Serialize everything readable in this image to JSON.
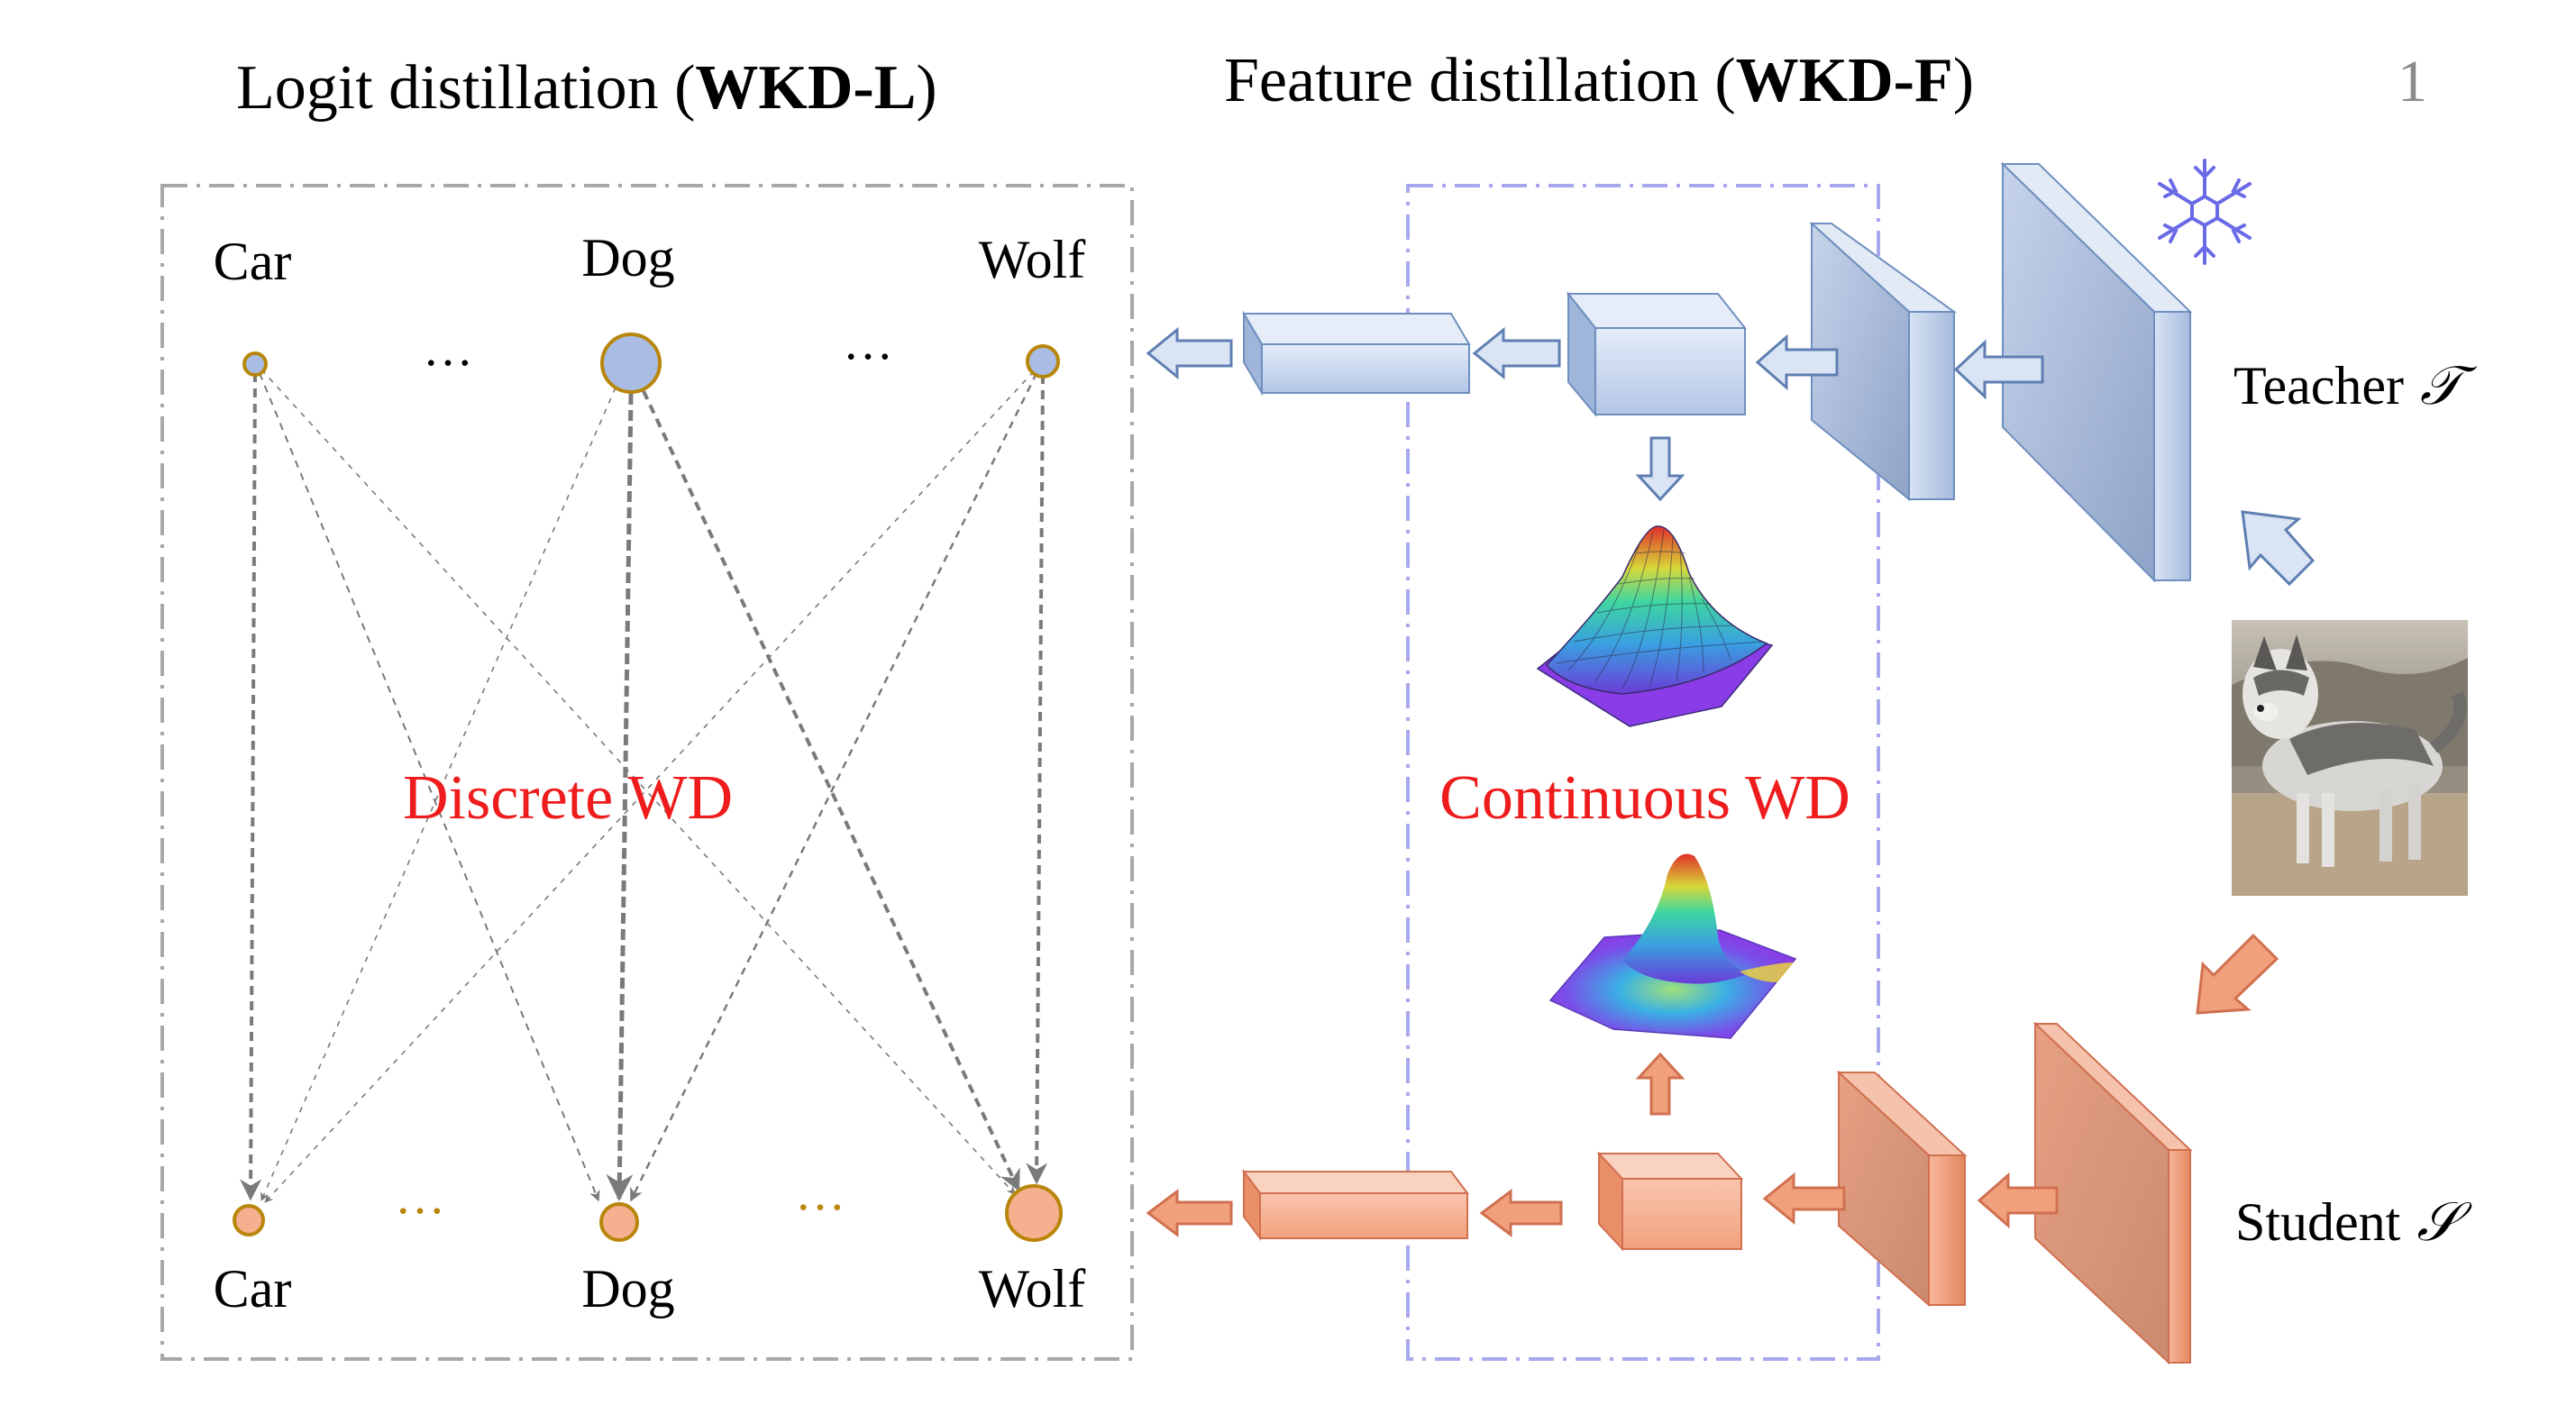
{
  "page_number": "1",
  "titles": {
    "logit_prefix": "Logit distillation (",
    "logit_bold": "WKD-L",
    "logit_suffix": ")",
    "feature_prefix": "Feature distillation (",
    "feature_bold": "WKD-F",
    "feature_suffix": ")"
  },
  "classes_top": [
    "Car",
    "Dog",
    "Wolf"
  ],
  "classes_bottom": [
    "Car",
    "Dog",
    "Wolf"
  ],
  "ellipsis": "…",
  "discrete_label": "Discrete WD",
  "continuous_label": "Continuous WD",
  "teacher_label": "Teacher",
  "teacher_symbol": "𝒯",
  "student_label": "Student",
  "student_symbol": "𝒮",
  "frozen_icon": "snowflake-icon",
  "input_image": "husky-dog-photo",
  "colors": {
    "teacher_fill": "#b5c8e6",
    "teacher_edge": "#5f7fb2",
    "student_fill": "#f4a98a",
    "student_edge": "#d06a48",
    "node_top_fill": "#a9bde4",
    "node_bottom_fill": "#f4b08f",
    "node_stroke": "#b8860b",
    "accent_red": "#ee1c1c",
    "box_gray": "#a8a8a8",
    "box_purple": "#a8a8ee"
  }
}
